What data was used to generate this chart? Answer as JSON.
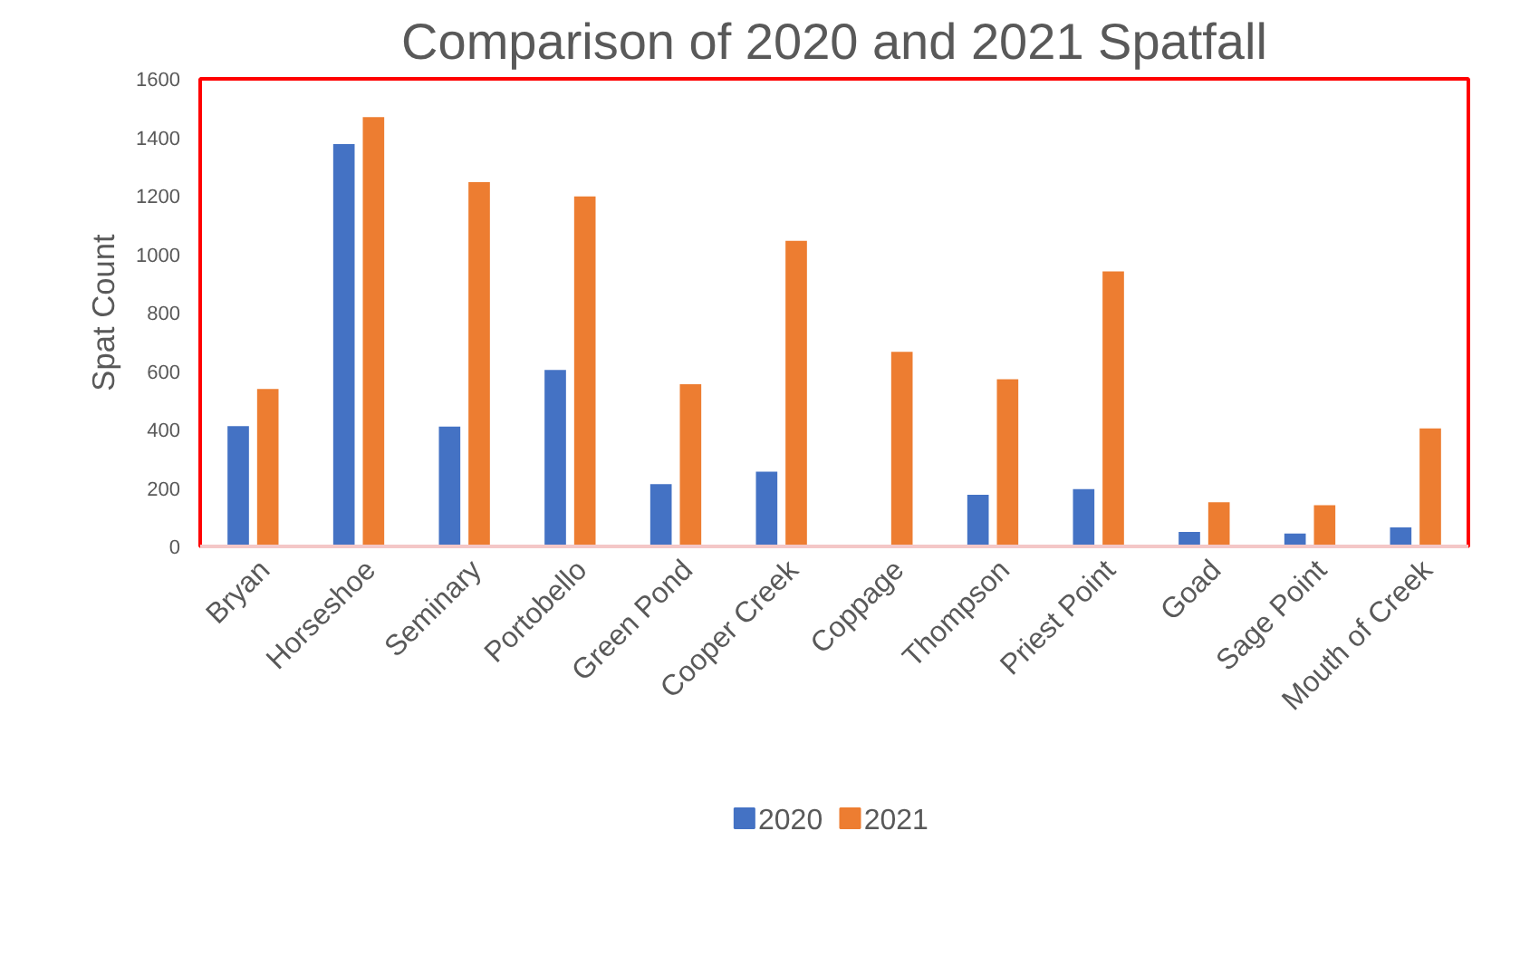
{
  "chart_data": {
    "type": "bar",
    "title": "Comparison of 2020 and 2021 Spatfall",
    "ylabel": "Spat Count",
    "categories": [
      "Bryan",
      "Horseshoe",
      "Seminary",
      "Portobello",
      "Green Pond",
      "Cooper Creek",
      "Coppage",
      "Thompson",
      "Priest Point",
      "Goad",
      "Sage Point",
      "Mouth of Creek"
    ],
    "series": [
      {
        "name": "2020",
        "color": "#4472c4",
        "values": [
          415,
          1380,
          413,
          607,
          216,
          259,
          null,
          180,
          199,
          53,
          47,
          68
        ]
      },
      {
        "name": "2021",
        "color": "#ed7d31",
        "values": [
          542,
          1472,
          1250,
          1201,
          558,
          1049,
          669,
          575,
          944,
          154,
          144,
          407
        ]
      }
    ],
    "ylim": [
      0,
      1600
    ],
    "yticks": [
      0,
      200,
      400,
      600,
      800,
      1000,
      1200,
      1400,
      1600
    ],
    "grid": false,
    "legend": "bottom"
  }
}
